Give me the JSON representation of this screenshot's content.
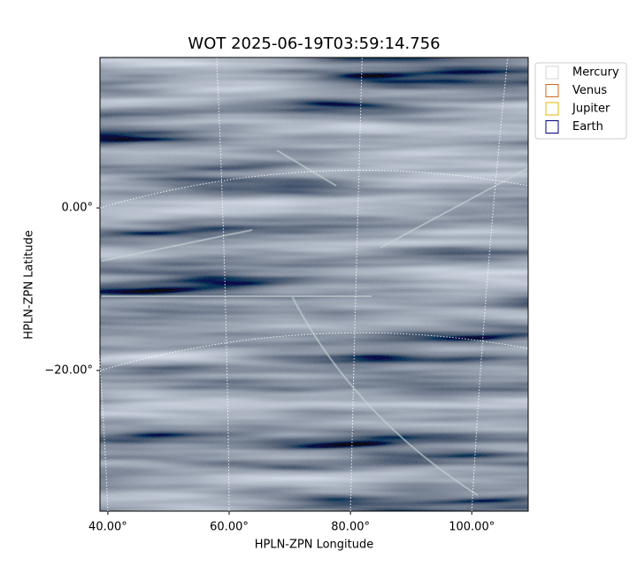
{
  "chart_data": {
    "type": "image",
    "title": "WOT 2025-06-19T03:59:14.756",
    "xlabel": "HPLN-ZPN Longitude",
    "ylabel": "HPLN-ZPN Latitude",
    "xlim": [
      38.7,
      109.3
    ],
    "ylim": [
      -37.3,
      18.5
    ],
    "xticks": [
      {
        "value": 40,
        "label": "40.00°"
      },
      {
        "value": 60,
        "label": "60.00°"
      },
      {
        "value": 80,
        "label": "80.00°"
      },
      {
        "value": 100,
        "label": "100.00°"
      }
    ],
    "yticks": [
      {
        "value": 0,
        "label": "0.00°"
      },
      {
        "value": -20,
        "label": "−20.00°"
      }
    ],
    "grid": true,
    "legend": "upper-right-outside",
    "series": [
      {
        "name": "Mercury",
        "color": "#d3d3d3"
      },
      {
        "name": "Venus",
        "color": "#d2691e"
      },
      {
        "name": "Jupiter",
        "color": "#e6b400"
      },
      {
        "name": "Earth",
        "color": "#000080"
      }
    ]
  }
}
